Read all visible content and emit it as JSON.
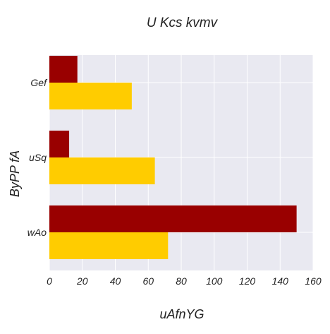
{
  "chart_data": {
    "type": "bar",
    "orientation": "horizontal",
    "title": "U Kcs kvmv",
    "xlabel": "uAfnYG",
    "ylabel": "ByPP fA",
    "categories": [
      "wAo",
      "uSq",
      "Gef"
    ],
    "series": [
      {
        "color": "#ffcc00",
        "values": [
          72,
          64,
          50
        ]
      },
      {
        "color": "#990000",
        "values": [
          150,
          12,
          17
        ]
      }
    ],
    "xlim": [
      0,
      160
    ],
    "xticks": [
      0,
      20,
      40,
      60,
      80,
      100,
      120,
      140,
      160
    ],
    "grid": true,
    "plot_background": "#e9e9f1",
    "grid_color": "#ffffff"
  }
}
